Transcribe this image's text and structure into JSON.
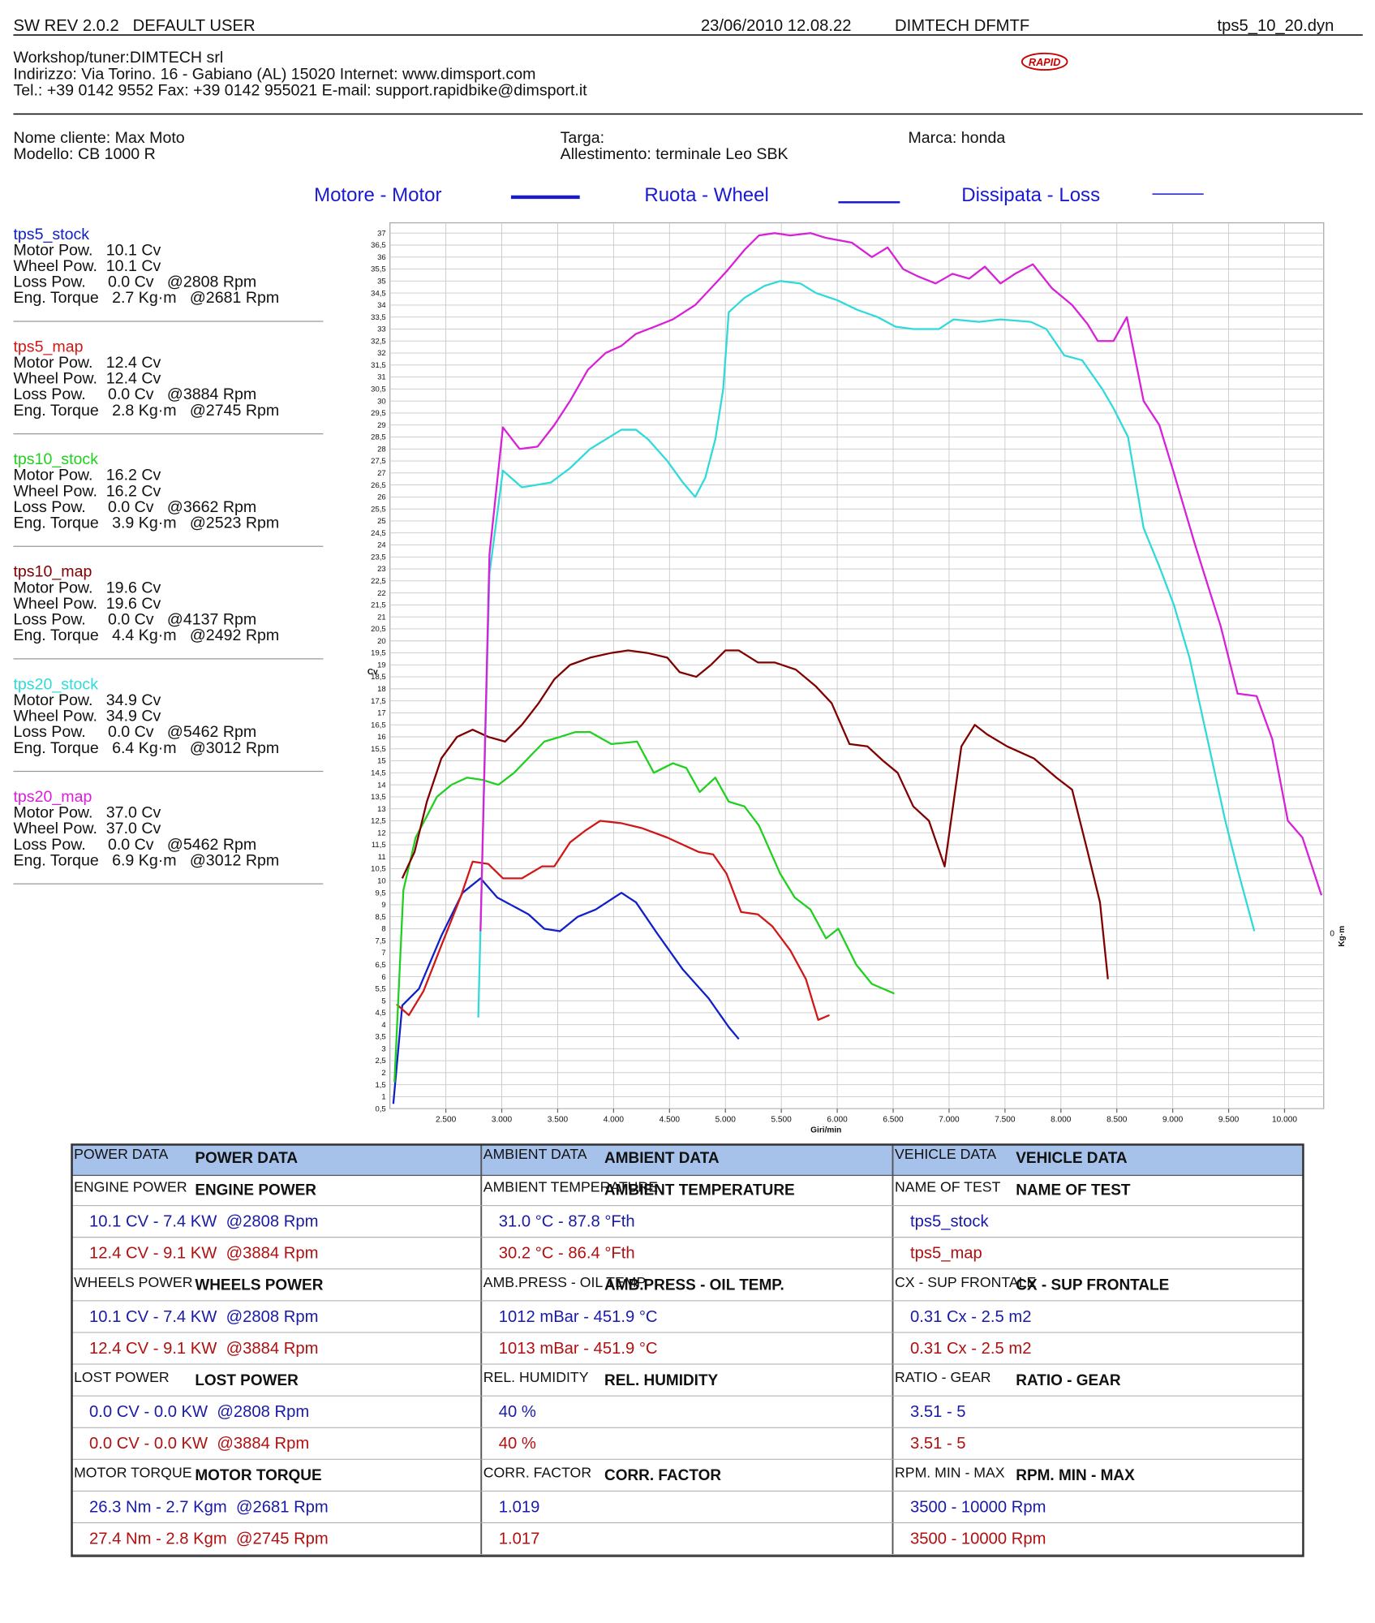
{
  "header": {
    "software": "SW REV 2.0.2   DEFAULT USER",
    "datetime": "23/06/2010 12.08.22",
    "device": "DIMTECH DFMTF",
    "file": "tps5_10_20.dyn"
  },
  "workshop": [
    "Workshop/tuner:DIMTECH srl",
    "Indirizzo: Via Torino. 16 - Gabiano (AL) 15020 Internet: www.dimsport.com",
    "Tel.: +39 0142 9552 Fax: +39 0142 955021 E-mail: support.rapidbike@dimsport.it"
  ],
  "logo": "RAPID",
  "customer": {
    "name": "Nome cliente: Max Moto",
    "model": "Modello: CB 1000 R",
    "plate": "Targa:",
    "setup": "Allestimento: terminale Leo SBK",
    "brand": "Marca: honda"
  },
  "runs": [
    {
      "lines": [
        "Motor Pow.   10.1 Cv",
        "Wheel Pow.  10.1 Cv",
        "Loss Pow.     0.0 Cv   @2808 Rpm",
        "Eng. Torque   2.7 Kg·m   @2681 Rpm"
      ]
    },
    {
      "lines": [
        "Motor Pow.   12.4 Cv",
        "Wheel Pow.  12.4 Cv",
        "Loss Pow.     0.0 Cv   @3884 Rpm",
        "Eng. Torque   2.8 Kg·m   @2745 Rpm"
      ]
    },
    {
      "lines": [
        "Motor Pow.   16.2 Cv",
        "Wheel Pow.  16.2 Cv",
        "Loss Pow.     0.0 Cv   @3662 Rpm",
        "Eng. Torque   3.9 Kg·m   @2523 Rpm"
      ]
    },
    {
      "lines": [
        "Motor Pow.   19.6 Cv",
        "Wheel Pow.  19.6 Cv",
        "Loss Pow.     0.0 Cv   @4137 Rpm",
        "Eng. Torque   4.4 Kg·m   @2492 Rpm"
      ]
    },
    {
      "lines": [
        "Motor Pow.   34.9 Cv",
        "Wheel Pow.  34.9 Cv",
        "Loss Pow.     0.0 Cv   @5462 Rpm",
        "Eng. Torque   6.4 Kg·m   @3012 Rpm"
      ]
    },
    {
      "lines": [
        "Motor Pow.   37.0 Cv",
        "Wheel Pow.  37.0 Cv",
        "Loss Pow.     0.0 Cv   @5462 Rpm",
        "Eng. Torque   6.9 Kg·m   @3012 Rpm"
      ]
    }
  ],
  "chart_data": {
    "type": "line",
    "legend_labels": [
      "Motore - Motor",
      "Ruota - Wheel",
      "Dissipata - Loss"
    ],
    "xlabel": "Giri/min",
    "ylabel": "Cv",
    "y2label": "Kg·m",
    "y2tick": "0",
    "grid": true,
    "xlim": [
      2000,
      10350
    ],
    "ylim": [
      0.5,
      37
    ],
    "xticks": [
      {
        "value": 2500,
        "label": "2.500"
      },
      {
        "value": 3000,
        "label": "3.000"
      },
      {
        "value": 3500,
        "label": "3.500"
      },
      {
        "value": 4000,
        "label": "4.000"
      },
      {
        "value": 4500,
        "label": "4.500"
      },
      {
        "value": 5000,
        "label": "5.000"
      },
      {
        "value": 5500,
        "label": "5.500"
      },
      {
        "value": 6000,
        "label": "6.000"
      },
      {
        "value": 6500,
        "label": "6.500"
      },
      {
        "value": 7000,
        "label": "7.000"
      },
      {
        "value": 7500,
        "label": "7.500"
      },
      {
        "value": 8000,
        "label": "8.000"
      },
      {
        "value": 8500,
        "label": "8.500"
      },
      {
        "value": 9000,
        "label": "9.000"
      },
      {
        "value": 9500,
        "label": "9.500"
      },
      {
        "value": 10000,
        "label": "10.000"
      }
    ],
    "yticks": [
      {
        "value": 0.5,
        "label": "0,5"
      },
      1,
      {
        "value": 1.5,
        "label": "1,5"
      },
      2,
      {
        "value": 2.5,
        "label": "2,5"
      },
      3,
      {
        "value": 3.5,
        "label": "3,5"
      },
      4,
      {
        "value": 4.5,
        "label": "4,5"
      },
      5,
      {
        "value": 5.5,
        "label": "5,5"
      },
      6,
      {
        "value": 6.5,
        "label": "6,5"
      },
      7,
      {
        "value": 7.5,
        "label": "7,5"
      },
      8,
      {
        "value": 8.5,
        "label": "8,5"
      },
      9,
      {
        "value": 9.5,
        "label": "9,5"
      },
      10,
      {
        "value": 10.5,
        "label": "10,5"
      },
      11,
      {
        "value": 11.5,
        "label": "11,5"
      },
      12,
      {
        "value": 12.5,
        "label": "12,5"
      },
      13,
      {
        "value": 13.5,
        "label": "13,5"
      },
      14,
      {
        "value": 14.5,
        "label": "14,5"
      },
      15,
      {
        "value": 15.5,
        "label": "15,5"
      },
      16,
      {
        "value": 16.5,
        "label": "16,5"
      },
      17,
      {
        "value": 17.5,
        "label": "17,5"
      },
      18,
      {
        "value": 18.5,
        "label": "18,5"
      },
      19,
      {
        "value": 19.5,
        "label": "19,5"
      },
      20,
      {
        "value": 20.5,
        "label": "20,5"
      },
      21,
      {
        "value": 21.5,
        "label": "21,5"
      },
      22,
      {
        "value": 22.5,
        "label": "22,5"
      },
      23,
      {
        "value": 23.5,
        "label": "23,5"
      },
      24,
      {
        "value": 24.5,
        "label": "24,5"
      },
      25,
      {
        "value": 25.5,
        "label": "25,5"
      },
      26,
      {
        "value": 26.5,
        "label": "26,5"
      },
      27,
      {
        "value": 27.5,
        "label": "27,5"
      },
      28,
      {
        "value": 28.5,
        "label": "28,5"
      },
      29,
      {
        "value": 29.5,
        "label": "29,5"
      },
      30,
      {
        "value": 30.5,
        "label": "30,5"
      },
      31,
      {
        "value": 31.5,
        "label": "31,5"
      },
      32,
      {
        "value": 32.5,
        "label": "32,5"
      },
      33,
      {
        "value": 33.5,
        "label": "33,5"
      },
      34,
      {
        "value": 34.5,
        "label": "34,5"
      },
      35,
      {
        "value": 35.5,
        "label": "35,5"
      },
      36,
      {
        "value": 36.5,
        "label": "36,5"
      },
      37
    ],
    "series": [
      {
        "name": "tps5_stock",
        "color": "#1020c8",
        "x": [
          2030,
          2110,
          2260,
          2460,
          2650,
          2810,
          2960,
          3240,
          3380,
          3520,
          3680,
          3840,
          4070,
          4200,
          4390,
          4620,
          4850,
          5030,
          5120
        ],
        "values": [
          0.7,
          4.8,
          5.5,
          7.7,
          9.5,
          10.1,
          9.3,
          8.6,
          8,
          7.9,
          8.5,
          8.8,
          9.5,
          9.1,
          7.8,
          6.3,
          5.1,
          3.9,
          3.4
        ]
      },
      {
        "name": "tps5_map",
        "color": "#d01818",
        "x": [
          2060,
          2170,
          2300,
          2460,
          2630,
          2740,
          2880,
          3010,
          3180,
          3360,
          3470,
          3610,
          3750,
          3880,
          4070,
          4250,
          4480,
          4760,
          4890,
          5010,
          5140,
          5290,
          5420,
          5580,
          5720,
          5830,
          5930
        ],
        "values": [
          4.85,
          4.4,
          5.4,
          7.3,
          9.3,
          10.8,
          10.7,
          10.1,
          10.1,
          10.6,
          10.6,
          11.6,
          12.1,
          12.5,
          12.4,
          12.2,
          11.8,
          11.2,
          11.1,
          10.3,
          8.7,
          8.6,
          8.1,
          7.1,
          5.9,
          4.2,
          4.4
        ]
      },
      {
        "name": "tps10_stock",
        "color": "#20d020",
        "x": [
          2040,
          2120,
          2230,
          2420,
          2550,
          2690,
          2830,
          2970,
          3110,
          3380,
          3520,
          3660,
          3790,
          3980,
          4210,
          4360,
          4530,
          4650,
          4770,
          4910,
          5030,
          5170,
          5300,
          5490,
          5620,
          5760,
          5900,
          6010,
          6170,
          6310,
          6510
        ],
        "values": [
          1.6,
          9.6,
          11.8,
          13.5,
          14,
          14.3,
          14.2,
          14,
          14.5,
          15.8,
          16,
          16.2,
          16.2,
          15.7,
          15.8,
          14.5,
          14.9,
          14.7,
          13.7,
          14.3,
          13.3,
          13.1,
          12.3,
          10.3,
          9.3,
          8.8,
          7.6,
          8,
          6.5,
          5.7,
          5.3
        ]
      },
      {
        "name": "tps10_map",
        "color": "#800000",
        "x": [
          2110,
          2220,
          2330,
          2460,
          2600,
          2740,
          2880,
          3030,
          3180,
          3330,
          3470,
          3610,
          3790,
          3980,
          4130,
          4300,
          4480,
          4590,
          4740,
          4870,
          5000,
          5120,
          5290,
          5440,
          5630,
          5810,
          5950,
          6110,
          6270,
          6410,
          6540,
          6680,
          6820,
          6960,
          7110,
          7230,
          7340,
          7520,
          7760,
          7960,
          8100,
          8240,
          8350,
          8420
        ],
        "values": [
          10.1,
          11.2,
          13.3,
          15.1,
          16,
          16.3,
          16,
          15.8,
          16.5,
          17.4,
          18.4,
          19,
          19.3,
          19.5,
          19.6,
          19.5,
          19.3,
          18.7,
          18.5,
          19,
          19.6,
          19.6,
          19.1,
          19.1,
          18.8,
          18.1,
          17.4,
          15.7,
          15.6,
          15,
          14.5,
          13.1,
          12.5,
          10.6,
          15.6,
          16.5,
          16.1,
          15.6,
          15.1,
          14.3,
          13.8,
          11.2,
          9.1,
          5.9
        ]
      },
      {
        "name": "tps20_stock",
        "color": "#30dada",
        "x": [
          2790,
          2890,
          3010,
          3180,
          3440,
          3610,
          3790,
          3930,
          4070,
          4200,
          4310,
          4480,
          4620,
          4730,
          4820,
          4910,
          4980,
          5030,
          5170,
          5350,
          5490,
          5670,
          5810,
          6000,
          6180,
          6360,
          6520,
          6680,
          6910,
          7040,
          7270,
          7460,
          7730,
          7870,
          8030,
          8190,
          8370,
          8470,
          8600,
          8740,
          8880,
          9010,
          9150,
          9330,
          9470,
          9590,
          9730
        ],
        "values": [
          4.3,
          22.8,
          27.1,
          26.4,
          26.6,
          27.2,
          28,
          28.4,
          28.8,
          28.8,
          28.4,
          27.5,
          26.6,
          26,
          26.8,
          28.4,
          30.5,
          33.7,
          34.3,
          34.8,
          35,
          34.9,
          34.5,
          34.2,
          33.8,
          33.5,
          33.1,
          33,
          33,
          33.4,
          33.3,
          33.4,
          33.3,
          33,
          31.9,
          31.7,
          30.5,
          29.7,
          28.5,
          24.7,
          23.1,
          21.5,
          19.3,
          15.5,
          12.5,
          10.3,
          7.9
        ]
      },
      {
        "name": "tps20_map",
        "color": "#d820d8",
        "x": [
          2810,
          2890,
          3010,
          3160,
          3320,
          3470,
          3610,
          3770,
          3930,
          4070,
          4200,
          4370,
          4530,
          4730,
          4870,
          5010,
          5170,
          5300,
          5440,
          5580,
          5760,
          5900,
          6130,
          6310,
          6450,
          6590,
          6720,
          6880,
          7030,
          7180,
          7320,
          7460,
          7590,
          7750,
          7920,
          8100,
          8240,
          8330,
          8470,
          8590,
          8740,
          8880,
          9010,
          9200,
          9430,
          9580,
          9750,
          9890,
          10030,
          10160,
          10330
        ],
        "values": [
          7.9,
          23.6,
          28.9,
          28,
          28.1,
          29,
          30,
          31.3,
          32,
          32.3,
          32.8,
          33.1,
          33.4,
          34,
          34.7,
          35.4,
          36.3,
          36.9,
          37,
          36.9,
          37,
          36.8,
          36.6,
          36,
          36.4,
          35.5,
          35.2,
          34.9,
          35.3,
          35.1,
          35.6,
          34.9,
          35.3,
          35.7,
          34.7,
          34,
          33.2,
          32.5,
          32.5,
          33.5,
          30,
          29,
          27,
          24,
          20.6,
          17.8,
          17.7,
          15.9,
          12.5,
          11.8,
          9.4
        ]
      }
    ]
  },
  "table": {
    "columns": [
      {
        "title": {
          "small": "POWER DATA",
          "bold": "POWER DATA"
        },
        "sections": [
          {
            "small": "ENGINE POWER",
            "bold": "ENGINE POWER",
            "rows": [
              "10.1 CV - 7.4 KW  @2808 Rpm",
              "12.4 CV - 9.1 KW  @3884 Rpm"
            ]
          },
          {
            "small": "WHEELS POWER",
            "bold": "WHEELS POWER",
            "rows": [
              "10.1 CV - 7.4 KW  @2808 Rpm",
              "12.4 CV - 9.1 KW  @3884 Rpm"
            ]
          },
          {
            "small": "LOST POWER",
            "bold": "LOST POWER",
            "rows": [
              "0.0 CV - 0.0 KW  @2808 Rpm",
              "0.0 CV - 0.0 KW  @3884 Rpm"
            ]
          },
          {
            "small": "MOTOR TORQUE",
            "bold": "MOTOR TORQUE",
            "rows": [
              "26.3 Nm - 2.7 Kgm  @2681 Rpm",
              "27.4 Nm - 2.8 Kgm  @2745 Rpm"
            ]
          }
        ]
      },
      {
        "title": {
          "small": "AMBIENT DATA",
          "bold": "AMBIENT DATA"
        },
        "sections": [
          {
            "small": "AMBIENT TEMPERATURE",
            "bold": "AMBIENT TEMPERATURE",
            "rows": [
              "31.0 °C - 87.8 °Fth",
              "30.2 °C - 86.4 °Fth"
            ]
          },
          {
            "small": "AMB.PRESS - OIL TEMP",
            "bold": "AMB.PRESS - OIL TEMP.",
            "rows": [
              "1012 mBar - 451.9 °C",
              "1013 mBar - 451.9 °C"
            ]
          },
          {
            "small": "REL. HUMIDITY",
            "bold": "REL. HUMIDITY",
            "rows": [
              "40 %",
              "40 %"
            ]
          },
          {
            "small": "CORR. FACTOR",
            "bold": "CORR. FACTOR",
            "rows": [
              "1.019",
              "1.017"
            ]
          }
        ]
      },
      {
        "title": {
          "small": "VEHICLE DATA",
          "bold": "VEHICLE DATA"
        },
        "sections": [
          {
            "small": "NAME OF TEST",
            "bold": "NAME OF TEST",
            "rows": [
              "tps5_stock",
              "tps5_map"
            ]
          },
          {
            "small": "CX - SUP FRONTALE",
            "bold": "CX - SUP FRONTALE",
            "rows": [
              "0.31 Cx - 2.5 m2",
              "0.31 Cx - 2.5 m2"
            ]
          },
          {
            "small": "RATIO - GEAR",
            "bold": "RATIO - GEAR",
            "rows": [
              "3.51 - 5",
              "3.51 - 5"
            ]
          },
          {
            "small": "RPM. MIN - MAX",
            "bold": "RPM. MIN - MAX",
            "rows": [
              "3500 - 10000 Rpm",
              "3500 - 10000 Rpm"
            ]
          }
        ]
      }
    ]
  }
}
